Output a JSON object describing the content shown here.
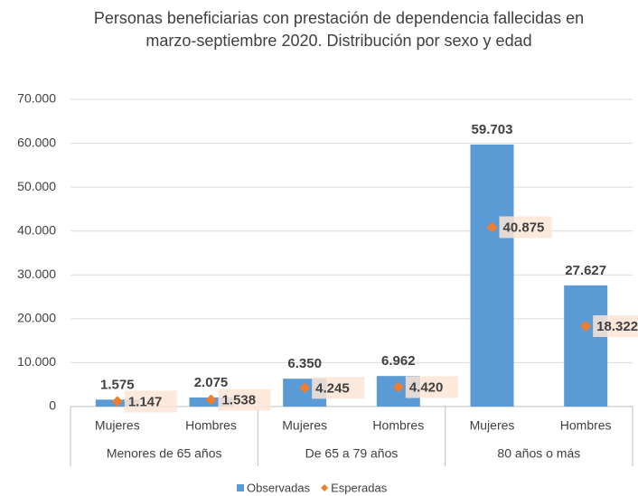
{
  "chart_data": {
    "type": "bar",
    "title": "Personas beneficiarias con prestación de dependencia fallecidas en marzo-septiembre 2020. Distribución por sexo y edad",
    "categories": [
      "Mujeres",
      "Hombres",
      "Mujeres",
      "Hombres",
      "Mujeres",
      "Hombres"
    ],
    "groups": [
      "Menores de 65 años",
      "De 65 a 79 años",
      "80 años o más"
    ],
    "series": [
      {
        "name": "Observadas",
        "color": "#5b9bd5",
        "marker": "bar",
        "values": [
          1575,
          2075,
          6350,
          6962,
          59703,
          27627
        ],
        "value_labels": [
          "1.575",
          "2.075",
          "6.350",
          "6.962",
          "59.703",
          "27.627"
        ]
      },
      {
        "name": "Esperadas",
        "color": "#ed7d31",
        "marker": "diamond",
        "values": [
          1147,
          1538,
          4245,
          4420,
          40875,
          18322
        ],
        "value_labels": [
          "1.147",
          "1.538",
          "4.245",
          "4.420",
          "40.875",
          "18.322"
        ]
      }
    ],
    "ylim": [
      0,
      70000
    ],
    "yticks": [
      0,
      {
        "value": 10000,
        "label": "10.000"
      },
      {
        "value": 20000,
        "label": "20.000"
      },
      {
        "value": 30000,
        "label": "30.000"
      },
      {
        "value": 40000,
        "label": "40.000"
      },
      {
        "value": 50000,
        "label": "50.000"
      },
      {
        "value": 60000,
        "label": "60.000"
      },
      {
        "value": 70000,
        "label": "70.000"
      }
    ],
    "legend": "bottom"
  }
}
